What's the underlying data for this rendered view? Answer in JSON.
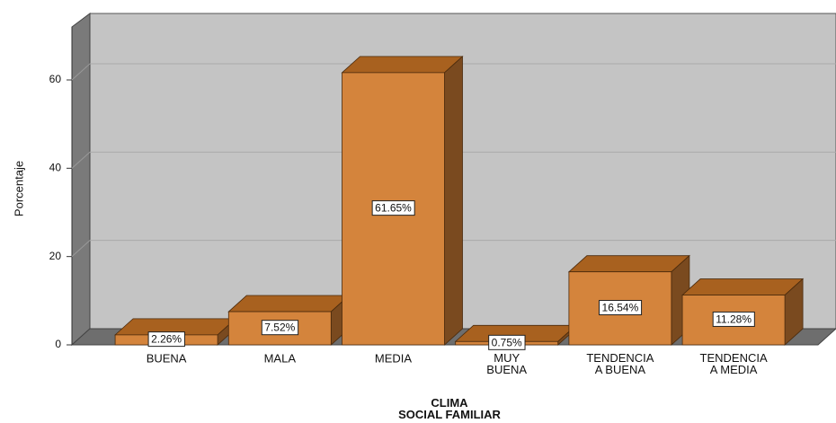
{
  "chart_data": {
    "type": "bar3d",
    "categories": [
      "BUENA",
      "MALA",
      "MEDIA",
      "MUY BUENA",
      "TENDENCIA A BUENA",
      "TENDENCIA A MEDIA"
    ],
    "values": [
      2.26,
      7.52,
      61.65,
      0.75,
      16.54,
      11.28
    ],
    "value_labels": [
      "2.26%",
      "7.52%",
      "61.65%",
      "0.75%",
      "16.54%",
      "11.28%"
    ],
    "color": "#d4843c",
    "x_label": "CLIMA SOCIAL FAMILIAR",
    "y_label": "Porcentaje",
    "ylim": [
      0,
      72
    ],
    "yticks": [
      0,
      20,
      40,
      60
    ],
    "grid": true
  }
}
